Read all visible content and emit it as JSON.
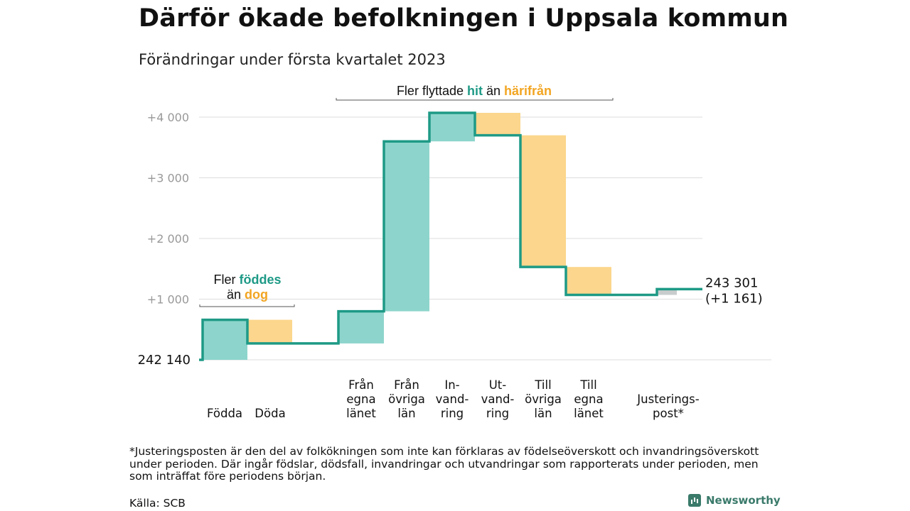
{
  "title": "Därför ökade befolkningen i Uppsala kommun",
  "subtitle": "Förändringar under första kvartalet 2023",
  "chart_data": {
    "type": "waterfall",
    "start": {
      "value": 242140,
      "label": "242 140"
    },
    "end": {
      "value": 243301,
      "label": "243 301",
      "change_label": "(+1 161)"
    },
    "yticks": [
      {
        "value": 1000,
        "label": "+1 000"
      },
      {
        "value": 2000,
        "label": "+2 000"
      },
      {
        "value": 3000,
        "label": "+3 000"
      },
      {
        "value": 4000,
        "label": "+4 000"
      }
    ],
    "ylim": [
      0,
      4100
    ],
    "steps": [
      {
        "label": "Födda",
        "delta": 660,
        "kind": "in"
      },
      {
        "label": "Döda",
        "delta": -390,
        "kind": "out"
      },
      {
        "label": "",
        "delta": 0,
        "kind": "gap"
      },
      {
        "label": "Från egna länet",
        "delta": 530,
        "kind": "in"
      },
      {
        "label": "Från övriga län",
        "delta": 2800,
        "kind": "in"
      },
      {
        "label": "In-vand-ring",
        "delta": 470,
        "kind": "in"
      },
      {
        "label": "Ut-vand-ring",
        "delta": -370,
        "kind": "out"
      },
      {
        "label": "Till övriga län",
        "delta": -2170,
        "kind": "out"
      },
      {
        "label": "Till egna länet",
        "delta": -460,
        "kind": "out"
      },
      {
        "label": "",
        "delta": 0,
        "kind": "gap"
      },
      {
        "label": "Justerings-post*",
        "delta": 95,
        "kind": "adj"
      }
    ],
    "annotations": {
      "births": {
        "prefix": "Fler ",
        "highlight1": "föddes",
        "mid": "än ",
        "highlight2": "dog"
      },
      "migration": {
        "prefix": "Fler flyttade ",
        "highlight1": "hit",
        "mid": " än ",
        "highlight2": "härifrån"
      }
    },
    "colors": {
      "in_fill": "#8dd5cc",
      "out_fill": "#fbd68c",
      "adj_fill": "#c9cccc",
      "line": "#1e9a86",
      "highlight_in": "#1e9a86",
      "highlight_out": "#f2a522",
      "grid": "#dddddd",
      "tick_text": "#999999"
    }
  },
  "labels": {
    "Födda": "Födda",
    "Döda": "Döda",
    "fran_egna": [
      "Från",
      "egna",
      "länet"
    ],
    "fran_ovriga": [
      "Från",
      "övriga",
      "län"
    ],
    "invandring": [
      "In-",
      "vand-",
      "ring"
    ],
    "utvandring": [
      "Ut-",
      "vand-",
      "ring"
    ],
    "till_ovriga": [
      "Till",
      "övriga",
      "län"
    ],
    "till_egna": [
      "Till",
      "egna",
      "länet"
    ],
    "justering": [
      "Justerings-",
      "post*"
    ]
  },
  "footnote": "*Justeringsposten är den del av folkökningen som inte kan förklaras av födelseöverskott och invandringsöverskott under perioden. Där ingår födslar, dödsfall, invandringar och utvandringar som rapporterats under perioden, men som inträffat före periodens början.",
  "source": "Källa: SCB",
  "brand": "Newsworthy"
}
